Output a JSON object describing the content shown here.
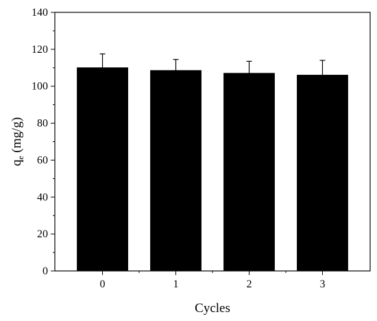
{
  "chart_data": {
    "type": "bar",
    "categories": [
      "0",
      "1",
      "2",
      "3"
    ],
    "values": [
      110,
      108.5,
      107,
      106
    ],
    "errors": [
      7.5,
      6,
      6.5,
      8
    ],
    "title": "",
    "xlabel": "Cycles",
    "ylabel_main": "q",
    "ylabel_sub": "e",
    "ylabel_units": " (mg/g)",
    "ylim": [
      0,
      140
    ],
    "yticks": [
      0,
      20,
      40,
      60,
      80,
      100,
      120,
      140
    ],
    "bar_color": "#000000",
    "grid": false
  }
}
